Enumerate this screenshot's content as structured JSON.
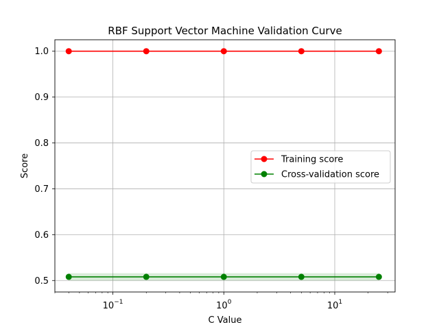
{
  "chart_data": {
    "type": "line",
    "title": "RBF Support Vector Machine Validation Curve",
    "xlabel": "C Value",
    "ylabel": "Score",
    "x_scale": "log",
    "xlim": [
      0.03,
      35
    ],
    "ylim": [
      0.475,
      1.025
    ],
    "grid": true,
    "legend_position": "center-right",
    "x_major_ticks": [
      {
        "value": 0.1,
        "base": "10",
        "exp": "−1"
      },
      {
        "value": 1,
        "base": "10",
        "exp": "0"
      },
      {
        "value": 10,
        "base": "10",
        "exp": "1"
      }
    ],
    "y_ticks": [
      {
        "value": 0.5,
        "label": "0.5"
      },
      {
        "value": 0.6,
        "label": "0.6"
      },
      {
        "value": 0.7,
        "label": "0.7"
      },
      {
        "value": 0.8,
        "label": "0.8"
      },
      {
        "value": 0.9,
        "label": "0.9"
      },
      {
        "value": 1.0,
        "label": "1.0"
      }
    ],
    "x": [
      0.04,
      0.2,
      1,
      5,
      25
    ],
    "series": [
      {
        "name": "Training score",
        "color": "#ff0000",
        "values": [
          1.0,
          1.0,
          1.0,
          1.0,
          1.0
        ],
        "band": [
          0,
          0,
          0,
          0,
          0
        ]
      },
      {
        "name": "Cross-validation score",
        "color": "#008000",
        "band_color": "#008000",
        "values": [
          0.508,
          0.508,
          0.508,
          0.508,
          0.508
        ],
        "band": [
          0.008,
          0.008,
          0.008,
          0.008,
          0.008
        ]
      }
    ]
  }
}
